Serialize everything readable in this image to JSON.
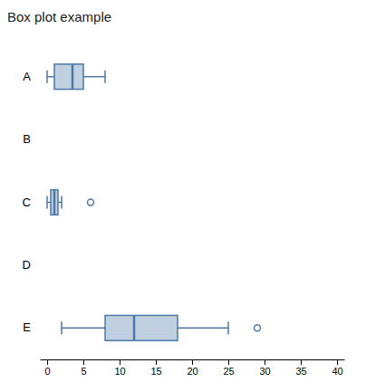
{
  "chart_data": {
    "type": "box",
    "title": "Box plot example",
    "orientation": "horizontal",
    "categories": [
      "A",
      "B",
      "C",
      "D",
      "E"
    ],
    "values": [
      {
        "q1": 1.0,
        "median": 3.5,
        "q3": 5.0,
        "whislo": 0.0,
        "whishi": 8.0,
        "fliers": []
      },
      null,
      {
        "q1": 0.5,
        "median": 1.0,
        "q3": 1.5,
        "whislo": 0.0,
        "whishi": 2.0,
        "fliers": [
          6.0
        ]
      },
      null,
      {
        "q1": 8.0,
        "median": 12.0,
        "q3": 18.0,
        "whislo": 2.0,
        "whishi": 25.0,
        "fliers": [
          29.0
        ]
      }
    ],
    "xlim": [
      -1,
      41
    ],
    "xticks": [
      0,
      5,
      10,
      15,
      20,
      25,
      30,
      35,
      40
    ],
    "color": "#4e79a7",
    "grid": false
  }
}
